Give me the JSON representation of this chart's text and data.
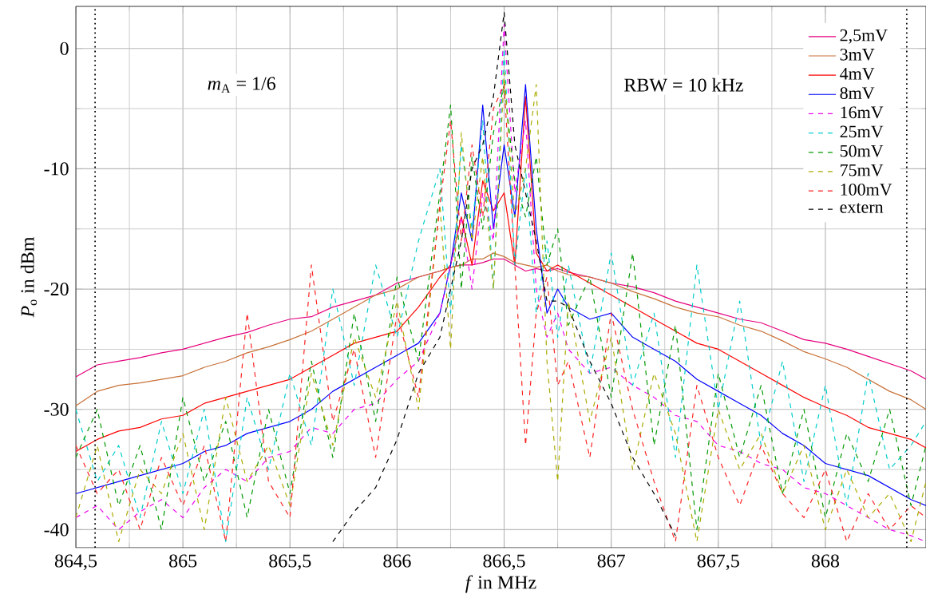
{
  "chart_data": {
    "type": "line",
    "xlabel": "*f* in MHz",
    "ylabel": "*P*$_{o}$ in dBm",
    "annotations": [
      "*m*$_{A}$ = 1/6",
      "RBW = 10 kHz"
    ],
    "x": [
      864.5,
      864.6,
      864.7,
      864.8,
      864.9,
      865.0,
      865.1,
      865.2,
      865.3,
      865.4,
      865.5,
      865.6,
      865.7,
      865.8,
      865.9,
      866.0,
      866.1,
      866.2,
      866.25,
      866.3,
      866.35,
      866.4,
      866.45,
      866.5,
      866.55,
      866.6,
      866.65,
      866.7,
      866.75,
      866.8,
      866.9,
      867.0,
      867.1,
      867.2,
      867.3,
      867.4,
      867.5,
      867.6,
      867.7,
      867.8,
      867.9,
      868.0,
      868.1,
      868.2,
      868.3,
      868.4,
      868.47
    ],
    "series": [
      {
        "name": "2,5mV",
        "color": "#e6007e",
        "line_style": "solid",
        "values": [
          -27.3,
          -26.3,
          -26,
          -25.7,
          -25.3,
          -25,
          -24.5,
          -24,
          -23.6,
          -23,
          -22.5,
          -22.3,
          -21.5,
          -21,
          -20.5,
          -19.5,
          -19,
          -18.5,
          -18.2,
          -18,
          -18,
          -17.8,
          -17.5,
          -17.5,
          -18,
          -18.5,
          -18.3,
          -18.5,
          -18.3,
          -18.6,
          -19,
          -19.5,
          -19.8,
          -20.3,
          -21,
          -21.5,
          -22,
          -22.5,
          -22.8,
          -23.5,
          -24.2,
          -24.5,
          -25,
          -25.6,
          -26.2,
          -26.8,
          -27.5
        ]
      },
      {
        "name": "3mV",
        "color": "#c87137",
        "line_style": "solid",
        "values": [
          -29.7,
          -28.5,
          -28,
          -27.8,
          -27.5,
          -27.2,
          -26.5,
          -26,
          -25.3,
          -24.8,
          -24.2,
          -23.5,
          -22.5,
          -21.5,
          -20.5,
          -20,
          -19,
          -18.5,
          -18.2,
          -18,
          -17.5,
          -17.5,
          -17,
          -17.3,
          -17.8,
          -18,
          -18.2,
          -18,
          -18.5,
          -18.8,
          -19,
          -19.5,
          -20.2,
          -20.8,
          -21.5,
          -22,
          -22.3,
          -23,
          -23.5,
          -24.3,
          -25.2,
          -25.8,
          -26.5,
          -27.5,
          -28.5,
          -29.2,
          -30
        ]
      },
      {
        "name": "4mV",
        "color": "#ff0000",
        "line_style": "solid",
        "values": [
          -33.5,
          -32.5,
          -31.8,
          -31.5,
          -30.8,
          -30.5,
          -29.5,
          -29,
          -28.5,
          -28,
          -27.5,
          -26.5,
          -25.5,
          -24.5,
          -24,
          -23.5,
          -21.5,
          -19,
          -18,
          -14,
          -18,
          -11,
          -13.5,
          -12,
          -18,
          -4,
          -17,
          -18.5,
          -18,
          -18.5,
          -19.5,
          -20.5,
          -21.5,
          -22.5,
          -23.5,
          -24.5,
          -25,
          -26,
          -27,
          -28,
          -29,
          -29.8,
          -30.5,
          -31.5,
          -32,
          -32.5,
          -33.2
        ]
      },
      {
        "name": "8mV",
        "color": "#0000ff",
        "line_style": "solid",
        "values": [
          -37,
          -36.5,
          -36,
          -35.5,
          -35,
          -34.5,
          -33.5,
          -33,
          -32,
          -31.5,
          -31,
          -30,
          -28.5,
          -27.5,
          -26.5,
          -25.5,
          -24.5,
          -22,
          -18,
          -12,
          -16,
          -4.7,
          -15,
          -8,
          -14,
          -3,
          -15,
          -22,
          -20,
          -21.5,
          -22.5,
          -22,
          -24,
          -25,
          -26,
          -27.5,
          -28.5,
          -29.5,
          -30.5,
          -32,
          -33,
          -34.5,
          -35,
          -35.5,
          -36.5,
          -37.5,
          -38
        ]
      },
      {
        "name": "16mV",
        "color": "#ee00ee",
        "line_style": "dashed",
        "values": [
          -39,
          -38,
          -40,
          -38.5,
          -37.5,
          -39,
          -36.5,
          -35,
          -36,
          -34,
          -33.5,
          -31.5,
          -32,
          -30,
          -29.5,
          -27.5,
          -26,
          -22,
          -18,
          -14,
          -20,
          -12,
          -16,
          2,
          -12,
          -6,
          -20,
          -24,
          -22,
          -25,
          -27,
          -26.5,
          -28,
          -29,
          -30.5,
          -31,
          -33,
          -33.5,
          -34.5,
          -35,
          -36.5,
          -37,
          -38,
          -39,
          -40,
          -40.5,
          -41
        ]
      },
      {
        "name": "25mV",
        "color": "#00cccc",
        "line_style": "dashed",
        "values": [
          -30,
          -36,
          -33,
          -39,
          -31,
          -37,
          -30,
          -41,
          -29,
          -35,
          -27,
          -33,
          -20,
          -28,
          -18,
          -24,
          -16,
          -10,
          -22,
          -8,
          -15,
          -6,
          -20,
          0,
          -18,
          -10,
          -22,
          -16,
          -24,
          -18,
          -27,
          -17,
          -28,
          -22,
          -34,
          -18,
          -30,
          -21,
          -33,
          -26,
          -36,
          -28,
          -38,
          -27,
          -35,
          -33,
          -31
        ]
      },
      {
        "name": "50mV",
        "color": "#009900",
        "line_style": "dashed",
        "values": [
          -34,
          -30,
          -38,
          -33,
          -40,
          -29,
          -36,
          -31,
          -39,
          -30,
          -37,
          -26,
          -34,
          -22,
          -31,
          -19,
          -26,
          -12,
          -4.7,
          -20,
          -9,
          -15,
          -7,
          -3,
          -11,
          -14,
          -9,
          -18,
          -15,
          -23,
          -19,
          -29,
          -17,
          -33,
          -23,
          -40,
          -27,
          -34,
          -28,
          -37,
          -30,
          -39,
          -32,
          -36,
          -30,
          -38,
          -33
        ]
      },
      {
        "name": "75mV",
        "color": "#aaaa00",
        "line_style": "dashed",
        "values": [
          -39,
          -33,
          -41,
          -35,
          -37,
          -32,
          -40,
          -29,
          -36,
          -33,
          -38,
          -27,
          -33,
          -24,
          -29,
          -21,
          -30,
          -13,
          -25,
          -7,
          -16,
          -9,
          -20,
          -2,
          -14,
          -10,
          -3,
          -26,
          -36,
          -21,
          -31,
          -24,
          -35,
          -27,
          -32,
          -41,
          -30,
          -35,
          -32,
          -37,
          -33,
          -40,
          -35,
          -39,
          -37,
          -41,
          -36
        ]
      },
      {
        "name": "100mV",
        "color": "#ff2222",
        "line_style": "dashed",
        "values": [
          -33,
          -37,
          -35,
          -40,
          -34,
          -38,
          -33,
          -41,
          -22,
          -36,
          -39,
          -18,
          -31,
          -25,
          -34,
          -22,
          -29,
          -13,
          -6,
          -16,
          -8,
          -14,
          -5,
          -3,
          -18,
          -33,
          -22,
          -19,
          -28,
          -26,
          -34,
          -22,
          -30,
          -36,
          -41,
          -28,
          -34,
          -38,
          -33,
          -37,
          -39,
          -35,
          -41,
          -37,
          -40,
          -38,
          -39
        ]
      },
      {
        "name": "extern",
        "color": "#000000",
        "line_style": "dashed",
        "values": [
          null,
          null,
          null,
          null,
          null,
          null,
          null,
          null,
          null,
          null,
          null,
          null,
          -41,
          -38.5,
          -36.5,
          -32.5,
          -27,
          -24,
          -20,
          -16,
          -10,
          -8,
          -4,
          3,
          -8,
          -12,
          -16,
          -21,
          -21,
          -21.5,
          -26,
          -29.5,
          -34,
          -37,
          -40.5,
          null,
          null,
          null,
          null,
          null,
          null,
          null,
          null,
          null,
          null,
          null,
          null
        ]
      }
    ],
    "xlim": [
      864.5,
      868.47
    ],
    "ylim": [
      -41.5,
      3.5
    ],
    "xticks": [
      {
        "value": 864.5,
        "label": "864,5"
      },
      865,
      {
        "value": 865.5,
        "label": "865,5"
      },
      866,
      {
        "value": 866.5,
        "label": "866,5"
      },
      867,
      {
        "value": 867.5,
        "label": "867,5"
      },
      868
    ],
    "yticks": [
      -40,
      -30,
      -20,
      -10,
      0
    ],
    "ref_lines": [
      {
        "axis": "x",
        "value": 864.59,
        "color": "#000000",
        "line_style": "dotted"
      },
      {
        "axis": "x",
        "value": 868.38,
        "color": "#000000",
        "line_style": "dotted"
      }
    ],
    "grid": true,
    "legend": "top right",
    "marker": "none"
  }
}
